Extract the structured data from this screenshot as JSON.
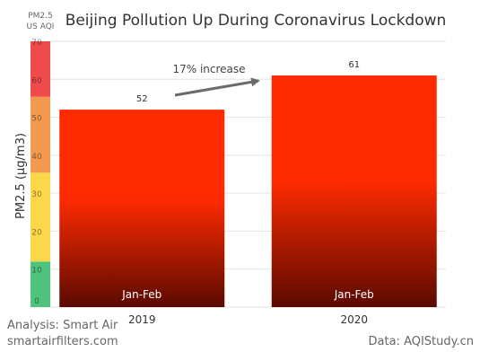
{
  "chart_data": {
    "type": "bar",
    "title": "Beijing Pollution Up During Coronavirus Lockdown",
    "ylabel": "PM2.5  (µg/m3)",
    "ylim": [
      0,
      70
    ],
    "grid": true,
    "categories": [
      "2019",
      "2020"
    ],
    "bar_labels": [
      "Jan-Feb",
      "Jan-Feb"
    ],
    "values": [
      52,
      61
    ],
    "data_labels": [
      "52",
      "61"
    ],
    "annotation": "17% increase",
    "aqi_scale": {
      "title_line1": "PM2.5",
      "title_line2": "US AQI",
      "ticks": [
        "0",
        "10",
        "20",
        "30",
        "40",
        "50",
        "60",
        "70"
      ],
      "bands": [
        {
          "from": 0,
          "to": 12,
          "color": "#4dc37b"
        },
        {
          "from": 12,
          "to": 35.4,
          "color": "#fdd74a"
        },
        {
          "from": 35.4,
          "to": 55.4,
          "color": "#f39a50"
        },
        {
          "from": 55.4,
          "to": 70,
          "color": "#ef4b4b"
        }
      ]
    },
    "colors": {
      "bar_top": "#ff2b00",
      "bar_bottom": "#5a0a00",
      "arrow": "#6b6b6b"
    }
  },
  "footer": {
    "analysis": "Analysis: Smart Air",
    "website": "smartairfilters.com",
    "source": "Data: AQIStudy.cn"
  }
}
